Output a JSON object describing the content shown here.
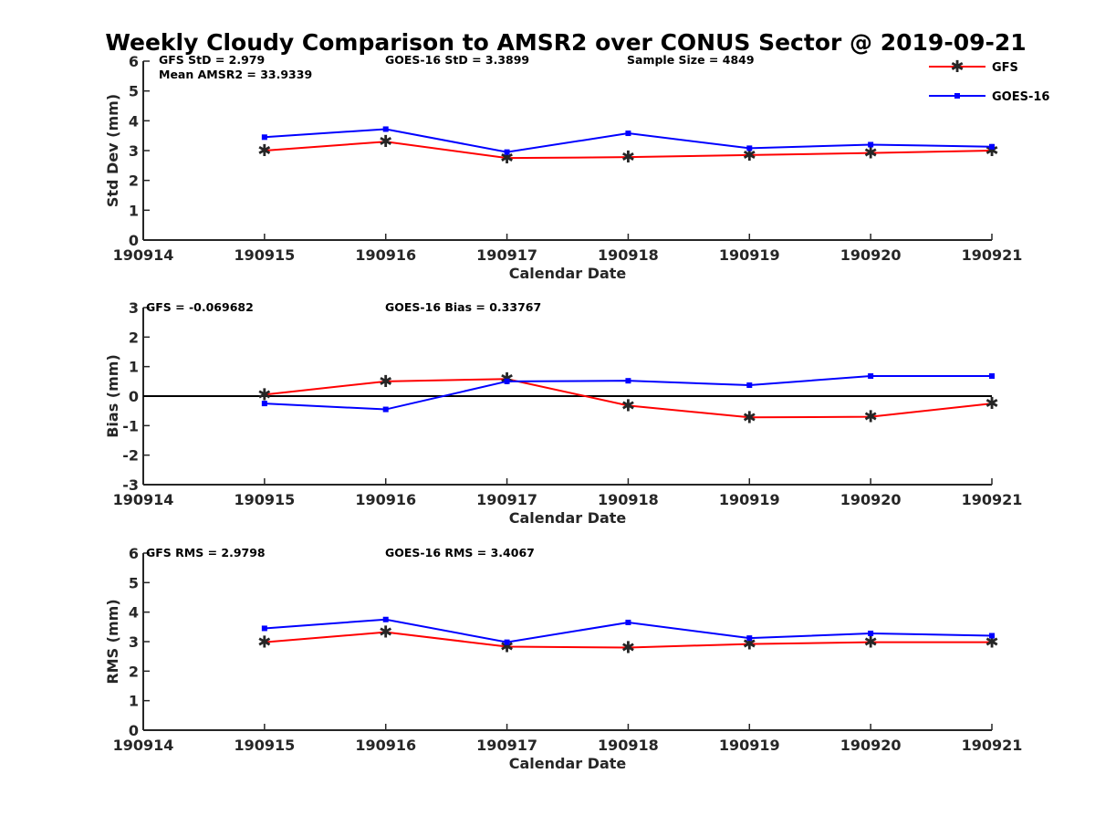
{
  "title": "Weekly Cloudy Comparison to AMSR2 over CONUS Sector @ 2019-09-21",
  "colors": {
    "gfs": "#ff0000",
    "goes": "#0000ff",
    "axis": "#262626",
    "zero_line": "#000000"
  },
  "legend": {
    "placement": "top-right",
    "items": [
      "GFS",
      "GOES-16"
    ]
  },
  "chart_data": [
    {
      "type": "line",
      "id": "std",
      "ylabel": "Std Dev (mm)",
      "xlabel": "Calendar Date",
      "categories": [
        "190914",
        "190915",
        "190916",
        "190917",
        "190918",
        "190919",
        "190920",
        "190921"
      ],
      "ylim": [
        0,
        6
      ],
      "yticks": [
        "0",
        "1",
        "2",
        "3",
        "4",
        "5",
        "6"
      ],
      "grid": false,
      "annotations": [
        "GFS StD = 2.979",
        "GOES-16 StD = 3.3899",
        "Sample Size = 4849",
        "Mean AMSR2 = 33.9339"
      ],
      "series": [
        {
          "name": "GFS",
          "x": [
            "190915",
            "190916",
            "190917",
            "190918",
            "190919",
            "190920",
            "190921"
          ],
          "values": [
            3.0,
            3.3,
            2.75,
            2.78,
            2.85,
            2.92,
            3.0
          ]
        },
        {
          "name": "GOES-16",
          "x": [
            "190915",
            "190916",
            "190917",
            "190918",
            "190919",
            "190920",
            "190921"
          ],
          "values": [
            3.45,
            3.72,
            2.95,
            3.58,
            3.08,
            3.2,
            3.13
          ]
        }
      ]
    },
    {
      "type": "line",
      "id": "bias",
      "ylabel": "Bias (mm)",
      "xlabel": "Calendar Date",
      "categories": [
        "190914",
        "190915",
        "190916",
        "190917",
        "190918",
        "190919",
        "190920",
        "190921"
      ],
      "ylim": [
        -3,
        3
      ],
      "yticks": [
        "-3",
        "-2",
        "-1",
        "0",
        "1",
        "2",
        "3"
      ],
      "grid": false,
      "zero_line": true,
      "annotations": [
        "GFS = -0.069682",
        "GOES-16 Bias  = 0.33767"
      ],
      "series": [
        {
          "name": "GFS",
          "x": [
            "190915",
            "190916",
            "190917",
            "190918",
            "190919",
            "190920",
            "190921"
          ],
          "values": [
            0.05,
            0.5,
            0.58,
            -0.32,
            -0.72,
            -0.7,
            -0.25
          ]
        },
        {
          "name": "GOES-16",
          "x": [
            "190915",
            "190916",
            "190917",
            "190918",
            "190919",
            "190920",
            "190921"
          ],
          "values": [
            -0.25,
            -0.45,
            0.5,
            0.52,
            0.37,
            0.68,
            0.68
          ]
        }
      ]
    },
    {
      "type": "line",
      "id": "rms",
      "ylabel": "RMS (mm)",
      "xlabel": "Calendar Date",
      "categories": [
        "190914",
        "190915",
        "190916",
        "190917",
        "190918",
        "190919",
        "190920",
        "190921"
      ],
      "ylim": [
        0,
        6
      ],
      "yticks": [
        "0",
        "1",
        "2",
        "3",
        "4",
        "5",
        "6"
      ],
      "grid": false,
      "annotations": [
        "GFS RMS = 2.9798",
        "GOES-16 RMS = 3.4067"
      ],
      "series": [
        {
          "name": "GFS",
          "x": [
            "190915",
            "190916",
            "190917",
            "190918",
            "190919",
            "190920",
            "190921"
          ],
          "values": [
            2.98,
            3.32,
            2.83,
            2.8,
            2.92,
            2.98,
            2.98
          ]
        },
        {
          "name": "GOES-16",
          "x": [
            "190915",
            "190916",
            "190917",
            "190918",
            "190919",
            "190920",
            "190921"
          ],
          "values": [
            3.45,
            3.75,
            2.98,
            3.65,
            3.12,
            3.28,
            3.2
          ]
        }
      ]
    }
  ]
}
